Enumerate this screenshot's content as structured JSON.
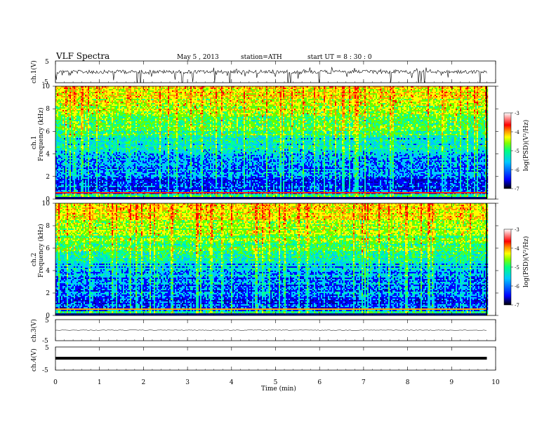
{
  "header": {
    "title": "VLF  Spectra",
    "date": "May 5  , 2013",
    "station": "station=ATH",
    "start": "start  UT  =   8  : 30 : 0"
  },
  "chart_data": [
    {
      "type": "line",
      "name": "ch1-waveform",
      "ylabel": "ch.1(V)",
      "ylim": [
        -5,
        5
      ],
      "yticks": [
        "5",
        "-5"
      ]
    },
    {
      "type": "heatmap",
      "name": "ch1-spectrogram",
      "ylabel_top": "ch.1",
      "ylabel": "Frequency  (kHz)",
      "ylim": [
        0,
        10
      ],
      "yticks": [
        "10",
        "8",
        "6",
        "4",
        "2",
        "0"
      ],
      "colorbar": {
        "label": "log(PSD)(V²/Hz)",
        "range": [
          -7,
          -3
        ],
        "ticks": [
          "-3",
          "-4",
          "-5",
          "-6",
          "-7"
        ]
      }
    },
    {
      "type": "heatmap",
      "name": "ch2-spectrogram",
      "ylabel_top": "ch.2",
      "ylabel": "Frequency  (kHz)",
      "ylim": [
        0,
        10
      ],
      "yticks": [
        "10",
        "8",
        "6",
        "4",
        "2",
        "0"
      ],
      "colorbar": {
        "label": "log(PSD)(V²/Hz)",
        "range": [
          -7,
          -3
        ],
        "ticks": [
          "-3",
          "-4",
          "-5",
          "-6",
          "-7"
        ]
      }
    },
    {
      "type": "line",
      "name": "ch3-waveform",
      "ylabel": "ch.3(V)",
      "ylim": [
        -5,
        5
      ],
      "yticks": [
        "5",
        "-5"
      ]
    },
    {
      "type": "line",
      "name": "ch4-waveform",
      "ylabel": "ch.4(V)",
      "ylim": [
        -5,
        5
      ],
      "yticks": [
        "5",
        "-5"
      ]
    }
  ],
  "xaxis": {
    "label": "Time  (min)",
    "range": [
      0,
      10
    ],
    "data_end": 9.8,
    "ticks": [
      "0",
      "1",
      "2",
      "3",
      "4",
      "5",
      "6",
      "7",
      "8",
      "9",
      "10"
    ]
  },
  "colors": {
    "colormap": [
      "#000000",
      "#0000a0",
      "#0000ff",
      "#00c8ff",
      "#00ff9c",
      "#64ff00",
      "#ffff00",
      "#ff9600",
      "#ff0000",
      "#ffffff"
    ]
  }
}
